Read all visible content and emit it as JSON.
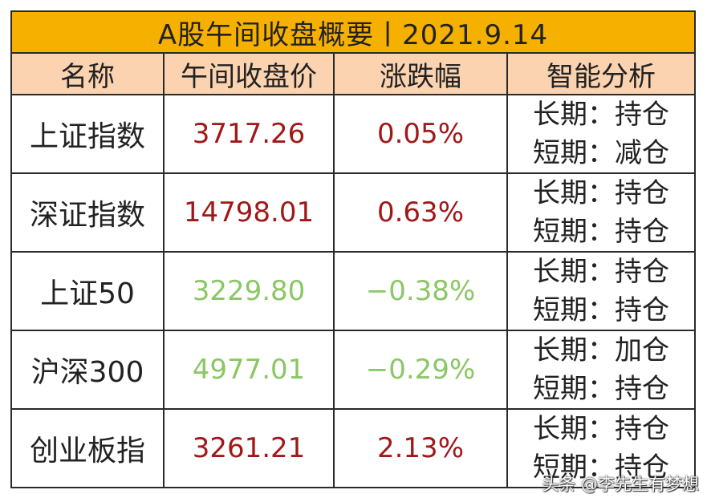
{
  "title": "A股午间收盘概要丨2021.9.14",
  "headers": [
    "名称",
    "午间收盘价",
    "涨跌幅",
    "智能分析"
  ],
  "rows": [
    {
      "name": "上证指数",
      "price": "3717.26",
      "change": "0.05%",
      "direction": "up",
      "long_term": "长期：持仓",
      "short_term": "短期：减仓"
    },
    {
      "name": "深证指数",
      "price": "14798.01",
      "change": "0.63%",
      "direction": "up",
      "long_term": "长期：持仓",
      "short_term": "短期：持仓"
    },
    {
      "name": "上证50",
      "price": "3229.80",
      "change": "−0.38%",
      "direction": "down",
      "long_term": "长期：持仓",
      "short_term": "短期：持仓"
    },
    {
      "name": "沪深300",
      "price": "4977.01",
      "change": "−0.29%",
      "direction": "down",
      "long_term": "长期：加仓",
      "short_term": "短期：持仓"
    },
    {
      "name": "创业板指",
      "price": "3261.21",
      "change": "2.13%",
      "direction": "up",
      "long_term": "长期：持仓",
      "short_term": "短期：持仓"
    }
  ],
  "colors": {
    "title_bg": "#f5b000",
    "header_bg": "#fbd3b0",
    "up": "#a01818",
    "down": "#8ac765"
  },
  "watermark": "头条 @李先生有梦想"
}
